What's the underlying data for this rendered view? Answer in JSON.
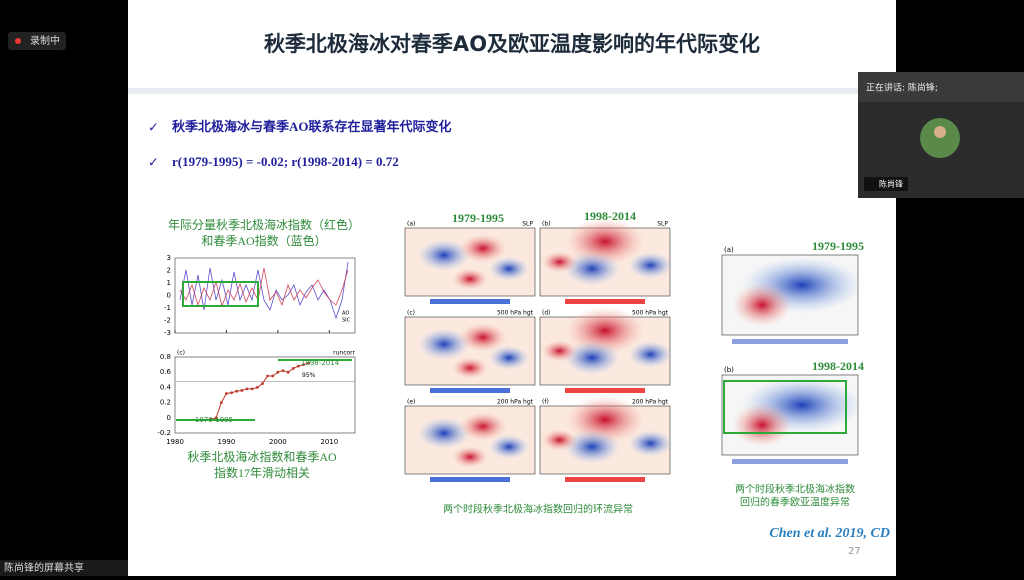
{
  "recording": "录制中",
  "slide": {
    "title": "秋季北极海冰对春季AO及欧亚温度影响的年代际变化",
    "bullets": [
      "秋季北极海冰与春季AO联系存在显著年代际变化",
      "r(1979-1995) = -0.02; r(1998-2014) = 0.72"
    ],
    "left": {
      "caption_top": [
        "年际分量秋季北极海冰指数（红色）",
        "和春季AO指数（蓝色）"
      ],
      "caption_bottom": [
        "秋季北极海冰指数和春季AO",
        "指数17年滑动相关"
      ],
      "ts": {
        "ylim": [
          -3,
          3
        ],
        "yticks": [
          -3,
          -2,
          -1,
          0,
          1,
          2,
          3
        ],
        "xlim": [
          1980,
          2015
        ],
        "xticks": [
          1980,
          1990,
          2000,
          2010
        ],
        "legend": [
          "AO",
          "SIC"
        ]
      },
      "runcorr": {
        "tag": "(c)",
        "label": "runcorr",
        "level_label": "95%",
        "level": 0.48,
        "period_a": "1979-1995",
        "period_b": "1998-2014",
        "xlim": [
          1980,
          2015
        ],
        "ylim": [
          -0.2,
          0.8
        ],
        "xticks": [
          1980,
          1990,
          2000,
          2010
        ],
        "yticks": [
          -0.2,
          0,
          0.2,
          0.4,
          0.6,
          0.8
        ],
        "x": [
          1987,
          1988,
          1989,
          1990,
          1991,
          1992,
          1993,
          1994,
          1995,
          1996,
          1997,
          1998,
          1999,
          2000,
          2001,
          2002,
          2003,
          2004,
          2005,
          2006
        ],
        "values": [
          -0.02,
          0.0,
          0.2,
          0.32,
          0.33,
          0.35,
          0.36,
          0.38,
          0.38,
          0.4,
          0.45,
          0.55,
          0.55,
          0.6,
          0.62,
          0.6,
          0.65,
          0.68,
          0.7,
          0.72
        ]
      }
    },
    "middle": {
      "periods": [
        "1979-1995",
        "1998-2014"
      ],
      "panels": [
        {
          "tag": "(a)",
          "level": "SLP"
        },
        {
          "tag": "(b)",
          "level": "SLP"
        },
        {
          "tag": "(c)",
          "level": "500 hPa hgt"
        },
        {
          "tag": "(d)",
          "level": "500 hPa hgt"
        },
        {
          "tag": "(e)",
          "level": "200 hPa hgt"
        },
        {
          "tag": "(f)",
          "level": "200 hPa hgt"
        }
      ],
      "caption": "两个时段秋季北极海冰指数回归的环流异常"
    },
    "right": {
      "periods": [
        "1979-1995",
        "1998-2014"
      ],
      "tags": [
        "(a)",
        "(b)"
      ],
      "caption": [
        "两个时段秋季北极海冰指数",
        "回归的春季欧亚温度异常"
      ]
    },
    "citation": "Chen et al. 2019, CD",
    "page": "27"
  },
  "video": {
    "speaking": "正在讲话: 陈尚锋;",
    "name": "陈尚锋"
  },
  "share": "陈尚锋的屏幕共享"
}
